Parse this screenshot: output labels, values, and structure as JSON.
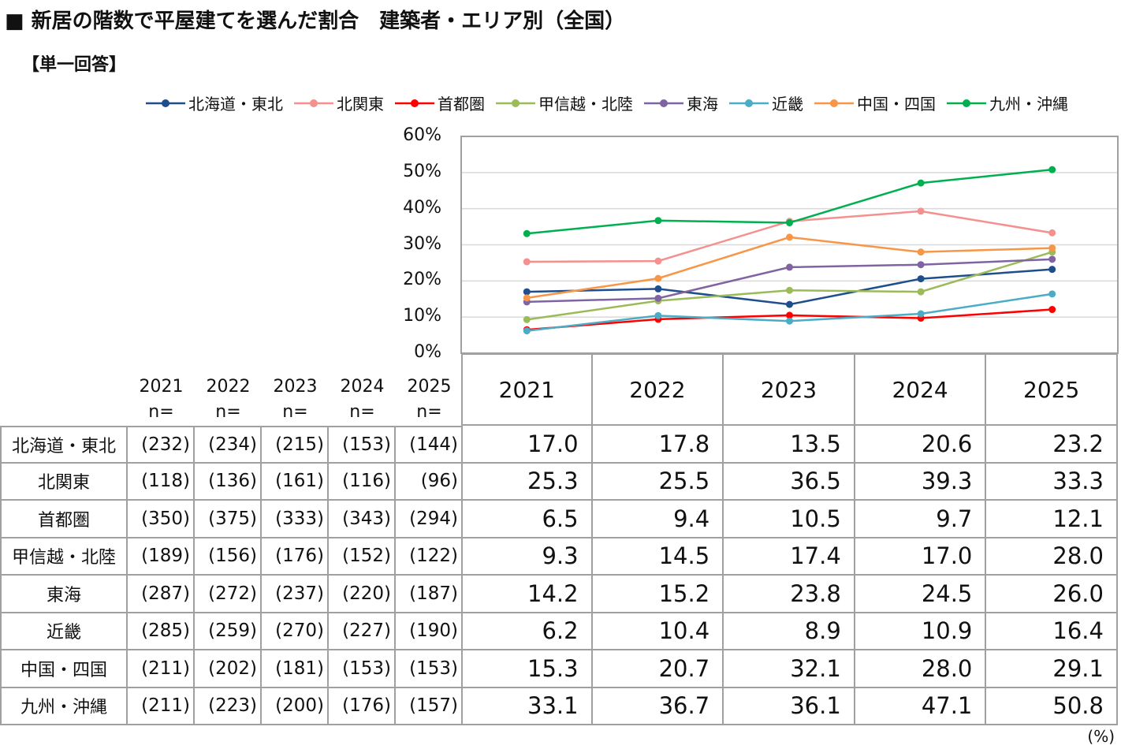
{
  "title": "■ 新居の階数で平屋建てを選んだ割合　建築者・エリア別（全国）",
  "subtitle": "【単一回答】",
  "unit": "(%)",
  "n_label": "n=",
  "chart_data": {
    "type": "line",
    "x": [
      "2021",
      "2022",
      "2023",
      "2024",
      "2025"
    ],
    "ylim": [
      0,
      60
    ],
    "yticks": [
      "0%",
      "10%",
      "20%",
      "30%",
      "40%",
      "50%",
      "60%"
    ],
    "grid": true,
    "legend": "top",
    "series": [
      {
        "name": "北海道・東北",
        "color": "#1f4e8c",
        "values": [
          17.0,
          17.8,
          13.5,
          20.6,
          23.2
        ],
        "n": [
          "(232)",
          "(234)",
          "(215)",
          "(153)",
          "(144)"
        ]
      },
      {
        "name": "北関東",
        "color": "#f4908e",
        "values": [
          25.3,
          25.5,
          36.5,
          39.3,
          33.3
        ],
        "n": [
          "(118)",
          "(136)",
          "(161)",
          "(116)",
          "(96)"
        ]
      },
      {
        "name": "首都圏",
        "color": "#ff0000",
        "values": [
          6.5,
          9.4,
          10.5,
          9.7,
          12.1
        ],
        "n": [
          "(350)",
          "(375)",
          "(333)",
          "(343)",
          "(294)"
        ]
      },
      {
        "name": "甲信越・北陸",
        "color": "#9bbb59",
        "values": [
          9.3,
          14.5,
          17.4,
          17.0,
          28.0
        ],
        "n": [
          "(189)",
          "(156)",
          "(176)",
          "(152)",
          "(122)"
        ]
      },
      {
        "name": "東海",
        "color": "#8064a2",
        "values": [
          14.2,
          15.2,
          23.8,
          24.5,
          26.0
        ],
        "n": [
          "(287)",
          "(272)",
          "(237)",
          "(220)",
          "(187)"
        ]
      },
      {
        "name": "近畿",
        "color": "#4bacc6",
        "values": [
          6.2,
          10.4,
          8.9,
          10.9,
          16.4
        ],
        "n": [
          "(285)",
          "(259)",
          "(270)",
          "(227)",
          "(190)"
        ]
      },
      {
        "name": "中国・四国",
        "color": "#f79646",
        "values": [
          15.3,
          20.7,
          32.1,
          28.0,
          29.1
        ],
        "n": [
          "(211)",
          "(202)",
          "(181)",
          "(153)",
          "(153)"
        ]
      },
      {
        "name": "九州・沖縄",
        "color": "#00b050",
        "values": [
          33.1,
          36.7,
          36.1,
          47.1,
          50.8
        ],
        "n": [
          "(211)",
          "(223)",
          "(200)",
          "(176)",
          "(157)"
        ]
      }
    ]
  }
}
